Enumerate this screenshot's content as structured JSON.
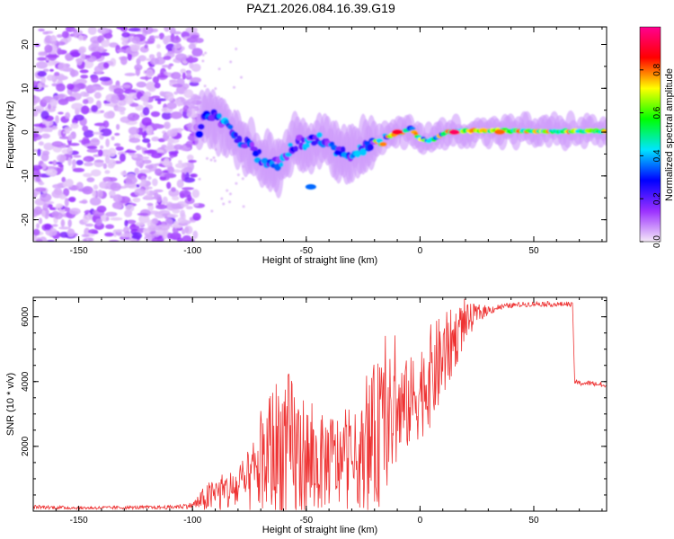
{
  "title": "PAZ1.2026.084.16.39.G19",
  "chart_data": [
    {
      "type": "heatmap",
      "title": "PAZ1.2026.084.16.39.G19",
      "xlabel": "Height of straight line (km)",
      "ylabel": "Frequency (Hz)",
      "xlim": [
        -170,
        82
      ],
      "ylim": [
        -25,
        24
      ],
      "xticks": [
        -150,
        -100,
        -50,
        0,
        50
      ],
      "yticks": [
        -20,
        -10,
        0,
        10,
        20
      ],
      "colorbar": {
        "label": "Normalized spectral amplitude",
        "range": [
          0.0,
          1.0
        ],
        "ticks": [
          0.0,
          0.2,
          0.4,
          0.6,
          0.8
        ],
        "colors": [
          "#f5e9f8",
          "#9b30ff",
          "#0000ff",
          "#00e5ff",
          "#00ff00",
          "#ffff00",
          "#ff0000",
          "#ff0090"
        ]
      },
      "noise_region_km": [
        -170,
        -97
      ],
      "ridge": [
        {
          "x": -96,
          "f": 4.5
        },
        {
          "x": -92,
          "f": 4.0
        },
        {
          "x": -88,
          "f": 2.5
        },
        {
          "x": -84,
          "f": 0.5
        },
        {
          "x": -80,
          "f": -1.5
        },
        {
          "x": -76,
          "f": -3.0
        },
        {
          "x": -72,
          "f": -5.0
        },
        {
          "x": -68,
          "f": -6.5
        },
        {
          "x": -64,
          "f": -7.5
        },
        {
          "x": -60,
          "f": -6.0
        },
        {
          "x": -56,
          "f": -3.0
        },
        {
          "x": -52,
          "f": -2.0
        },
        {
          "x": -48,
          "f": -2.5
        },
        {
          "x": -44,
          "f": -1.5
        },
        {
          "x": -40,
          "f": -3.0
        },
        {
          "x": -36,
          "f": -4.0
        },
        {
          "x": -32,
          "f": -5.0
        },
        {
          "x": -28,
          "f": -4.5
        },
        {
          "x": -24,
          "f": -3.5
        },
        {
          "x": -20,
          "f": -3.0
        },
        {
          "x": -16,
          "f": -1.5
        },
        {
          "x": -12,
          "f": -0.5
        },
        {
          "x": -8,
          "f": 0.0
        },
        {
          "x": -4,
          "f": 1.0
        },
        {
          "x": 0,
          "f": -1.5
        },
        {
          "x": 4,
          "f": -2.0
        },
        {
          "x": 8,
          "f": -1.0
        },
        {
          "x": 12,
          "f": 0.0
        },
        {
          "x": 20,
          "f": 0.3
        },
        {
          "x": 40,
          "f": 0.3
        },
        {
          "x": 60,
          "f": 0.2
        },
        {
          "x": 82,
          "f": 0.2
        }
      ],
      "blobs": [
        {
          "x": -48,
          "f": -12.5,
          "amp": 0.35
        },
        {
          "x": 15,
          "f": 0.0,
          "amp": 0.95
        },
        {
          "x": -10,
          "f": 0.0,
          "amp": 0.9
        },
        {
          "x": 35,
          "f": 0.0,
          "amp": 0.8
        }
      ]
    },
    {
      "type": "line",
      "xlabel": "Height of straight line (km)",
      "ylabel": "SNR (10 * v/v)",
      "xlim": [
        -170,
        82
      ],
      "ylim": [
        0,
        6600
      ],
      "xticks": [
        -150,
        -100,
        -50,
        0,
        50
      ],
      "yticks": [
        2000,
        4000,
        6000
      ],
      "series": [
        {
          "name": "SNR",
          "color": "#ee3333",
          "x": [
            -170,
            -150,
            -130,
            -110,
            -100,
            -94,
            -90,
            -85,
            -80,
            -75,
            -70,
            -65,
            -60,
            -55,
            -50,
            -45,
            -40,
            -35,
            -30,
            -25,
            -20,
            -15,
            -10,
            -5,
            0,
            5,
            10,
            15,
            20,
            25,
            30,
            35,
            40,
            45,
            50,
            55,
            60,
            65,
            67,
            68,
            70,
            75,
            80,
            82
          ],
          "y": [
            130,
            100,
            110,
            120,
            180,
            400,
            500,
            600,
            700,
            900,
            1400,
            1800,
            1900,
            1700,
            1500,
            1400,
            1600,
            1500,
            1500,
            1700,
            2200,
            2700,
            3000,
            3300,
            3700,
            4200,
            4700,
            5300,
            5800,
            6100,
            6200,
            6300,
            6350,
            6380,
            6400,
            6400,
            6380,
            6400,
            6350,
            4000,
            3950,
            3950,
            3900,
            3800
          ],
          "noise_amp": [
            60,
            50,
            50,
            60,
            100,
            450,
            550,
            650,
            750,
            1000,
            1500,
            2200,
            2600,
            2400,
            2000,
            1500,
            1500,
            1500,
            1400,
            1600,
            2400,
            2100,
            1700,
            1400,
            1500,
            1600,
            1400,
            1000,
            600,
            300,
            150,
            100,
            80,
            80,
            80,
            80,
            80,
            80,
            80,
            80,
            80,
            80,
            100,
            100
          ]
        }
      ]
    }
  ]
}
